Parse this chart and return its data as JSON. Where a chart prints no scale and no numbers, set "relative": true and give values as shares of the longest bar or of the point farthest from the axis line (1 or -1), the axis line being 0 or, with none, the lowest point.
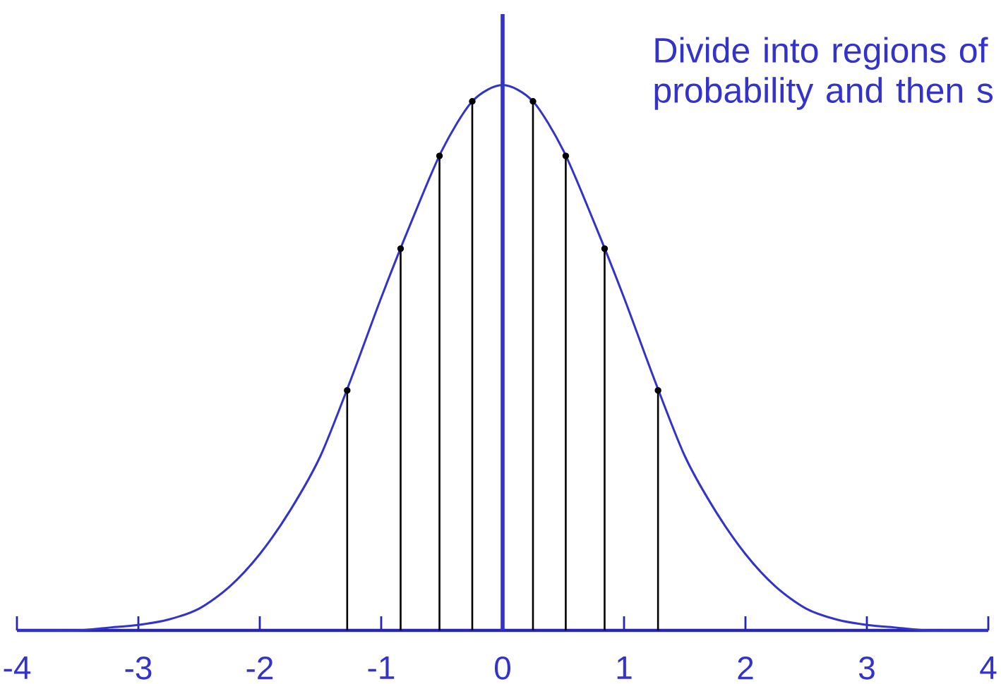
{
  "chart_data": {
    "type": "line",
    "relative": true,
    "xlim": [
      -4,
      4
    ],
    "xticks": [
      -4,
      -3,
      -2,
      -1,
      0,
      1,
      2,
      3,
      4
    ],
    "series": [
      {
        "color": "#3333cc",
        "x": [
          -4,
          -3.75,
          -3.5,
          -3.25,
          -3,
          -2.75,
          -2.5,
          -2.25,
          -2,
          -1.75,
          -1.5,
          -1.25,
          -1,
          -0.75,
          -0.5,
          -0.25,
          0,
          0.25,
          0.5,
          0.75,
          1,
          1.25,
          1.5,
          1.75,
          2,
          2.25,
          2.5,
          2.75,
          3,
          3.25,
          3.5,
          3.75,
          4
        ],
        "values": [
          0,
          0,
          0,
          0.005,
          0.01,
          0.02,
          0.04,
          0.08,
          0.14,
          0.22,
          0.32,
          0.46,
          0.61,
          0.75,
          0.88,
          0.97,
          1,
          0.97,
          0.88,
          0.75,
          0.61,
          0.46,
          0.32,
          0.22,
          0.14,
          0.08,
          0.04,
          0.02,
          0.01,
          0.005,
          0,
          0,
          0
        ]
      },
      {
        "type": "lollipop",
        "color": "#000000",
        "marker": "circle",
        "x": [
          -1.28,
          -0.84,
          -0.52,
          -0.25,
          0.25,
          0.52,
          0.84,
          1.28
        ],
        "values": [
          0.44,
          0.7,
          0.87,
          0.97,
          0.97,
          0.87,
          0.7,
          0.44
        ]
      }
    ],
    "ref_lines": [
      {
        "axis": "x",
        "value": 0,
        "color": "#3333cc"
      }
    ],
    "annotations": [
      "Divide into regions of probability and then s"
    ]
  }
}
